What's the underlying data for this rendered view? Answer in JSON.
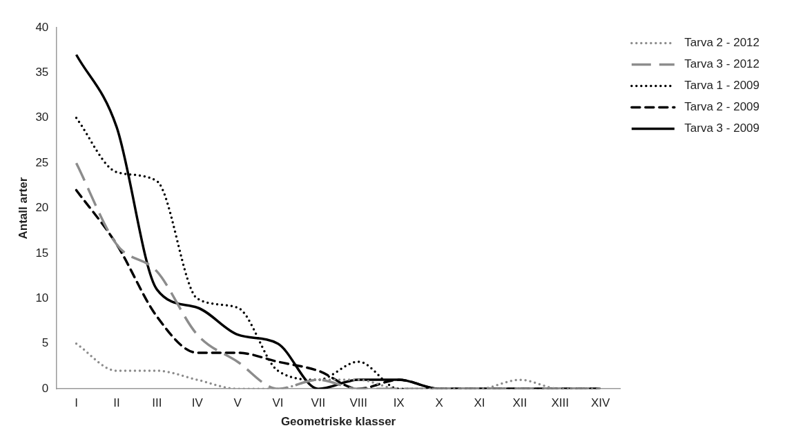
{
  "chart_data": {
    "type": "line",
    "xlabel": "Geometriske klasser",
    "ylabel": "Antall arter",
    "categories": [
      "I",
      "II",
      "III",
      "IV",
      "V",
      "VI",
      "VII",
      "VIII",
      "IX",
      "X",
      "XI",
      "XII",
      "XIII",
      "XIV"
    ],
    "series": [
      {
        "name": "Tarva 2 - 2012",
        "color": "#8c8c8c",
        "line_style": "dotted",
        "values": [
          5,
          2,
          2,
          1,
          0,
          0,
          1,
          1,
          0,
          0,
          0,
          1,
          0,
          0
        ]
      },
      {
        "name": "Tarva 3 - 2012",
        "color": "#8c8c8c",
        "line_style": "longdash",
        "values": [
          25,
          16,
          13,
          6,
          3,
          0,
          1,
          0,
          0,
          0,
          0,
          0,
          0,
          0
        ]
      },
      {
        "name": "Tarva 1 - 2009",
        "color": "#000000",
        "line_style": "dotted",
        "values": [
          30,
          24,
          23,
          10,
          9,
          2,
          1,
          3,
          0,
          0,
          0,
          0,
          0,
          0
        ]
      },
      {
        "name": "Tarva 2 - 2009",
        "color": "#000000",
        "line_style": "dashed",
        "values": [
          22,
          16,
          8,
          4,
          4,
          3,
          2,
          0,
          1,
          0,
          0,
          0,
          0,
          0
        ]
      },
      {
        "name": "Tarva 3 - 2009",
        "color": "#000000",
        "line_style": "solid",
        "values": [
          37,
          29,
          11,
          9,
          6,
          5,
          0,
          1,
          1,
          0,
          0,
          0,
          0,
          0
        ]
      }
    ],
    "ylim": [
      0,
      40
    ],
    "yticks": [
      0,
      5,
      10,
      15,
      20,
      25,
      30,
      35,
      40
    ],
    "grid": false,
    "legend": "right",
    "marker": "none"
  }
}
